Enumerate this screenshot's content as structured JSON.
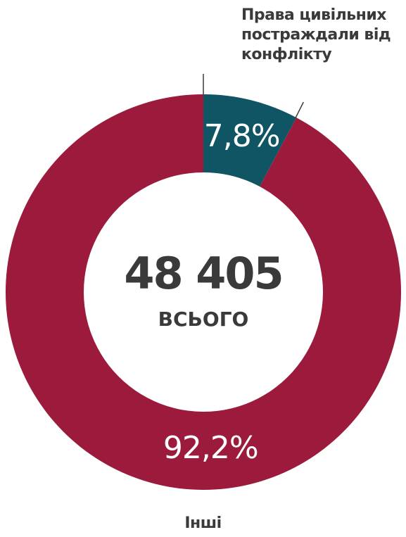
{
  "chart_data": {
    "type": "pie",
    "categories": [
      "Права цивільних постраждали від конфлікту",
      "Інші"
    ],
    "values": [
      7.8,
      92.2
    ],
    "value_labels": [
      "7,8%",
      "92,2%"
    ],
    "colors": [
      "#0f5564",
      "#9c1b3c"
    ],
    "center_label": "48 405",
    "center_sublabel": "ВСЬОГО"
  }
}
